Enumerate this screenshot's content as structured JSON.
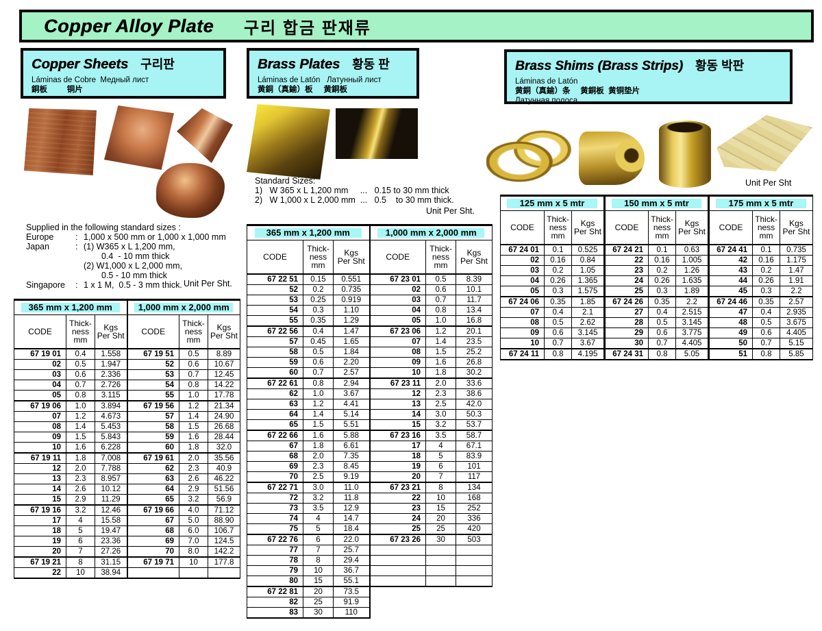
{
  "header": {
    "title_en": "Copper Alloy Plate",
    "title_ko": "구리 합금 판재류"
  },
  "copper": {
    "title_en": "Copper Sheets",
    "title_ko": "구리판",
    "subtitle_latin": "Láminas de Cobre  Медный лист",
    "subtitle_cjk": "銅板         铜片",
    "supply_heading": "Supplied in the following standard sizes :",
    "supply_lines": [
      {
        "label": "Europe",
        "colon": ":",
        "text": "1,000 x 500 mm or 1,000 x 1,000 mm"
      },
      {
        "label": "Japan",
        "colon": ":",
        "text": "(1) W365 x L 1,200 mm,"
      },
      {
        "label": "",
        "colon": "",
        "text": "0.4  - 10 mm thick"
      },
      {
        "label": "",
        "colon": "",
        "text": "(2) W1,000 x L 2,000 mm,"
      },
      {
        "label": "",
        "colon": "",
        "text": "0.5 - 10 mm thick"
      },
      {
        "label": "Singapore",
        "colon": ":",
        "text": "1 x 1 M,  0.5 - 3 mm thick."
      }
    ],
    "unit_note": "Unit Per Sht.",
    "table": {
      "sizes": [
        "365 mm x 1,200 mm",
        "1,000 mm x 2,000 mm"
      ],
      "col_headers": [
        "CODE",
        "Thick-\nness\nmm",
        "Kgs\nPer Sht"
      ],
      "groups": [
        {
          "cols": [
            [
              [
                "67 19 01",
                "0.4",
                "1.558"
              ],
              [
                "02",
                "0.5",
                "1.947"
              ],
              [
                "03",
                "0.6",
                "2.336"
              ],
              [
                "04",
                "0.7",
                "2.726"
              ],
              [
                "05",
                "0.8",
                "3.115"
              ]
            ],
            [
              [
                "67 19 51",
                "0.5",
                "8.89"
              ],
              [
                "52",
                "0.6",
                "10.67"
              ],
              [
                "53",
                "0.7",
                "12.45"
              ],
              [
                "54",
                "0.8",
                "14.22"
              ],
              [
                "55",
                "1.0",
                "17.78"
              ]
            ]
          ]
        },
        {
          "cols": [
            [
              [
                "67 19 06",
                "1.0",
                "3.894"
              ],
              [
                "07",
                "1.2",
                "4.673"
              ],
              [
                "08",
                "1.4",
                "5.453"
              ],
              [
                "09",
                "1.5",
                "5.843"
              ],
              [
                "10",
                "1.6",
                "6.228"
              ]
            ],
            [
              [
                "67 19 56",
                "1.2",
                "21.34"
              ],
              [
                "57",
                "1.4",
                "24.90"
              ],
              [
                "58",
                "1.5",
                "26.68"
              ],
              [
                "59",
                "1.6",
                "28.44"
              ],
              [
                "60",
                "1.8",
                "32.0"
              ]
            ]
          ]
        },
        {
          "cols": [
            [
              [
                "67 19 11",
                "1.8",
                "7.008"
              ],
              [
                "12",
                "2.0",
                "7.788"
              ],
              [
                "13",
                "2.3",
                "8.957"
              ],
              [
                "14",
                "2.6",
                "10.12"
              ],
              [
                "15",
                "2.9",
                "11.29"
              ]
            ],
            [
              [
                "67 19 61",
                "2.0",
                "35.56"
              ],
              [
                "62",
                "2.3",
                "40.9"
              ],
              [
                "63",
                "2.6",
                "46.22"
              ],
              [
                "64",
                "2.9",
                "51.56"
              ],
              [
                "65",
                "3.2",
                "56.9"
              ]
            ]
          ]
        },
        {
          "cols": [
            [
              [
                "67 19 16",
                "3.2",
                "12.46"
              ],
              [
                "17",
                "4",
                "15.58"
              ],
              [
                "18",
                "5",
                "19.47"
              ],
              [
                "19",
                "6",
                "23.36"
              ],
              [
                "20",
                "7",
                "27.26"
              ]
            ],
            [
              [
                "67 19 66",
                "4.0",
                "71.12"
              ],
              [
                "67",
                "5.0",
                "88.90"
              ],
              [
                "68",
                "6.0",
                "106.7"
              ],
              [
                "69",
                "7.0",
                "124.5"
              ],
              [
                "70",
                "8.0",
                "142.2"
              ]
            ]
          ]
        },
        {
          "cols": [
            [
              [
                "67 19 21",
                "8",
                "31.15"
              ],
              [
                "22",
                "10",
                "38.94"
              ]
            ],
            [
              [
                "67 19 71",
                "10",
                "177.8"
              ]
            ]
          ]
        }
      ]
    }
  },
  "brass": {
    "title_en": "Brass Plates",
    "title_ko": "황동 판",
    "subtitle_latin": "Láminas de Latón   Латунный лист",
    "subtitle_cjk": "黄銅（真鍮）板     黄銅板",
    "sizes_heading": "Standard Sizes:",
    "sizes_lines": [
      "1)   W 365 x L 1,200 mm     ...   0.15 to 30 mm thick",
      "2)   W 1,000 x L 2,000 mm  ...   0.5    to 30 mm thick."
    ],
    "unit_note": "Unit Per Sht.",
    "table": {
      "sizes": [
        "365 mm x 1,200 mm",
        "1,000 mm x 2,000 mm"
      ],
      "col_headers": [
        "CODE",
        "Thick-\nness\nmm",
        "Kgs\nPer Sht"
      ],
      "groups": [
        {
          "cols": [
            [
              [
                "67 22 51",
                "0.15",
                "0.551"
              ],
              [
                "52",
                "0.2",
                "0.735"
              ],
              [
                "53",
                "0.25",
                "0.919"
              ],
              [
                "54",
                "0.3",
                "1.10"
              ],
              [
                "55",
                "0.35",
                "1.29"
              ]
            ],
            [
              [
                "67 23 01",
                "0.5",
                "8.39"
              ],
              [
                "02",
                "0.6",
                "10.1"
              ],
              [
                "03",
                "0.7",
                "11.7"
              ],
              [
                "04",
                "0.8",
                "13.4"
              ],
              [
                "05",
                "1.0",
                "16.8"
              ]
            ]
          ]
        },
        {
          "cols": [
            [
              [
                "67 22 56",
                "0.4",
                "1.47"
              ],
              [
                "57",
                "0.45",
                "1.65"
              ],
              [
                "58",
                "0.5",
                "1.84"
              ],
              [
                "59",
                "0.6",
                "2.20"
              ],
              [
                "60",
                "0.7",
                "2.57"
              ]
            ],
            [
              [
                "67 23 06",
                "1.2",
                "20.1"
              ],
              [
                "07",
                "1.4",
                "23.5"
              ],
              [
                "08",
                "1.5",
                "25.2"
              ],
              [
                "09",
                "1.6",
                "26.8"
              ],
              [
                "10",
                "1.8",
                "30.2"
              ]
            ]
          ]
        },
        {
          "cols": [
            [
              [
                "67 22 61",
                "0.8",
                "2.94"
              ],
              [
                "62",
                "1.0",
                "3.67"
              ],
              [
                "63",
                "1.2",
                "4.41"
              ],
              [
                "64",
                "1.4",
                "5.14"
              ],
              [
                "65",
                "1.5",
                "5.51"
              ]
            ],
            [
              [
                "67 23 11",
                "2.0",
                "33.6"
              ],
              [
                "12",
                "2.3",
                "38.6"
              ],
              [
                "13",
                "2.5",
                "42.0"
              ],
              [
                "14",
                "3.0",
                "50.3"
              ],
              [
                "15",
                "3.2",
                "53.7"
              ]
            ]
          ]
        },
        {
          "cols": [
            [
              [
                "67 22 66",
                "1.6",
                "5.88"
              ],
              [
                "67",
                "1.8",
                "6.61"
              ],
              [
                "68",
                "2.0",
                "7.35"
              ],
              [
                "69",
                "2.3",
                "8.45"
              ],
              [
                "70",
                "2.5",
                "9.19"
              ]
            ],
            [
              [
                "67 23 16",
                "3.5",
                "58.7"
              ],
              [
                "17",
                "4",
                "67.1"
              ],
              [
                "18",
                "5",
                "83.9"
              ],
              [
                "19",
                "6",
                "101"
              ],
              [
                "20",
                "7",
                "117"
              ]
            ]
          ]
        },
        {
          "cols": [
            [
              [
                "67 22 71",
                "3.0",
                "11.0"
              ],
              [
                "72",
                "3.2",
                "11.8"
              ],
              [
                "73",
                "3.5",
                "12.9"
              ],
              [
                "74",
                "4",
                "14.7"
              ],
              [
                "75",
                "5",
                "18.4"
              ]
            ],
            [
              [
                "67 23 21",
                "8",
                "134"
              ],
              [
                "22",
                "10",
                "168"
              ],
              [
                "23",
                "15",
                "252"
              ],
              [
                "24",
                "20",
                "336"
              ],
              [
                "25",
                "25",
                "420"
              ]
            ]
          ]
        },
        {
          "cols": [
            [
              [
                "67 22 76",
                "6",
                "22.0"
              ],
              [
                "77",
                "7",
                "25.7"
              ],
              [
                "78",
                "8",
                "29.4"
              ],
              [
                "79",
                "10",
                "36.7"
              ],
              [
                "80",
                "15",
                "55.1"
              ]
            ],
            [
              [
                "67 23 26",
                "30",
                "503"
              ]
            ]
          ]
        },
        {
          "cols": [
            [
              [
                "67 22 81",
                "20",
                "73.5"
              ],
              [
                "82",
                "25",
                "91.9"
              ],
              [
                "83",
                "30",
                "110"
              ]
            ],
            null
          ]
        }
      ]
    }
  },
  "shims": {
    "title_en": "Brass Shims (Brass Strips)",
    "title_ko": "황동 박판",
    "subtitle_latin": "Láminas de Latón",
    "subtitle_cjk": "黄銅（真鍮）条　 黄銅板  黄铜垫片",
    "subtitle_ru": "Латунная полоса",
    "unit_note": "Unit Per Sht",
    "table": {
      "sizes": [
        "125 mm x 5 mtr",
        "150 mm x 5 mtr",
        "175 mm x 5 mtr"
      ],
      "col_headers": [
        "CODE",
        "Thick-\nness\nmm",
        "Kgs\nPer Sht"
      ],
      "groups": [
        {
          "cols": [
            [
              [
                "67 24 01",
                "0.1",
                "0.525"
              ],
              [
                "02",
                "0.16",
                "0.84"
              ],
              [
                "03",
                "0.2",
                "1.05"
              ],
              [
                "04",
                "0.26",
                "1.365"
              ],
              [
                "05",
                "0.3",
                "1.575"
              ]
            ],
            [
              [
                "67 24 21",
                "0.1",
                "0.63"
              ],
              [
                "22",
                "0.16",
                "1.005"
              ],
              [
                "23",
                "0.2",
                "1.26"
              ],
              [
                "24",
                "0.26",
                "1.635"
              ],
              [
                "25",
                "0.3",
                "1.89"
              ]
            ],
            [
              [
                "67 24 41",
                "0.1",
                "0.735"
              ],
              [
                "42",
                "0.16",
                "1.175"
              ],
              [
                "43",
                "0.2",
                "1.47"
              ],
              [
                "44",
                "0.26",
                "1.91"
              ],
              [
                "45",
                "0.3",
                "2.2"
              ]
            ]
          ]
        },
        {
          "cols": [
            [
              [
                "67 24 06",
                "0.35",
                "1.85"
              ],
              [
                "07",
                "0.4",
                "2.1"
              ],
              [
                "08",
                "0.5",
                "2.62"
              ],
              [
                "09",
                "0.6",
                "3.145"
              ],
              [
                "10",
                "0.7",
                "3.67"
              ]
            ],
            [
              [
                "67 24 26",
                "0.35",
                "2.2"
              ],
              [
                "27",
                "0.4",
                "2.515"
              ],
              [
                "28",
                "0.5",
                "3.145"
              ],
              [
                "29",
                "0.6",
                "3.775"
              ],
              [
                "30",
                "0.7",
                "4.405"
              ]
            ],
            [
              [
                "67 24 46",
                "0.35",
                "2.57"
              ],
              [
                "47",
                "0.4",
                "2.935"
              ],
              [
                "48",
                "0.5",
                "3.675"
              ],
              [
                "49",
                "0.6",
                "4.405"
              ],
              [
                "50",
                "0.7",
                "5.15"
              ]
            ]
          ]
        },
        {
          "cols": [
            [
              [
                "67 24 11",
                "0.8",
                "4.195"
              ]
            ],
            [
              [
                "67 24 31",
                "0.8",
                "5.05"
              ]
            ],
            [
              [
                "51",
                "0.8",
                "5.85"
              ]
            ]
          ]
        }
      ]
    }
  },
  "photos": {
    "copper_plate": "copper plate photo",
    "copper_stack": "copper sheet stack photo",
    "copper_wedge": "copper sheet angled photo",
    "copper_coil": "copper coil photo",
    "brass_stack": "brass plate stack photo",
    "brass_dark": "brass plates photo",
    "shim_ribbon": "brass shim ribbon photo",
    "shim_roll": "brass strip roll photo",
    "shim_coil": "brass shim coil photo",
    "shim_fan": "brass shim sheets photo"
  },
  "colors": {
    "header_green": "#a5f2c6",
    "section_cyan": "#a8f3f3",
    "size_chip_cyan": "#a8f6f6",
    "border_black": "#0a0a0a"
  }
}
